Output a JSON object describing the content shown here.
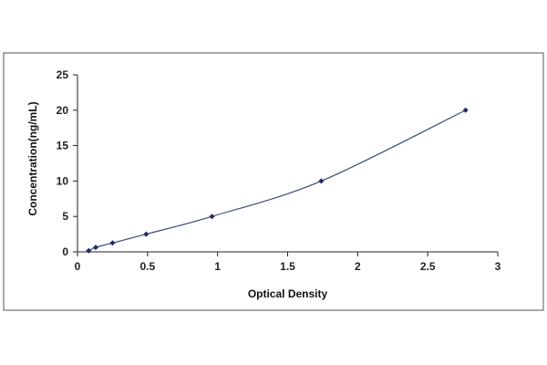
{
  "chart_data": {
    "type": "scatter",
    "xlabel": "Optical Density",
    "ylabel": "Concentration(ng/mL)",
    "xlim": [
      0,
      3
    ],
    "ylim": [
      0,
      25
    ],
    "x_ticks": [
      "0",
      "0.5",
      "1",
      "1.5",
      "2",
      "2.5",
      "3"
    ],
    "y_ticks": [
      "0",
      "5",
      "10",
      "15",
      "20",
      "25"
    ],
    "grid": false,
    "legend": "none",
    "smooth_fit_line": true,
    "series": [
      {
        "x": [
          0.08,
          0.13,
          0.25,
          0.49,
          0.96,
          1.74,
          2.77
        ],
        "y": [
          0.16,
          0.63,
          1.25,
          2.5,
          5,
          10,
          20
        ]
      }
    ],
    "colors": {
      "line": "#3a4a7a",
      "marker": "#1c2a66",
      "axis": "#222222"
    }
  }
}
